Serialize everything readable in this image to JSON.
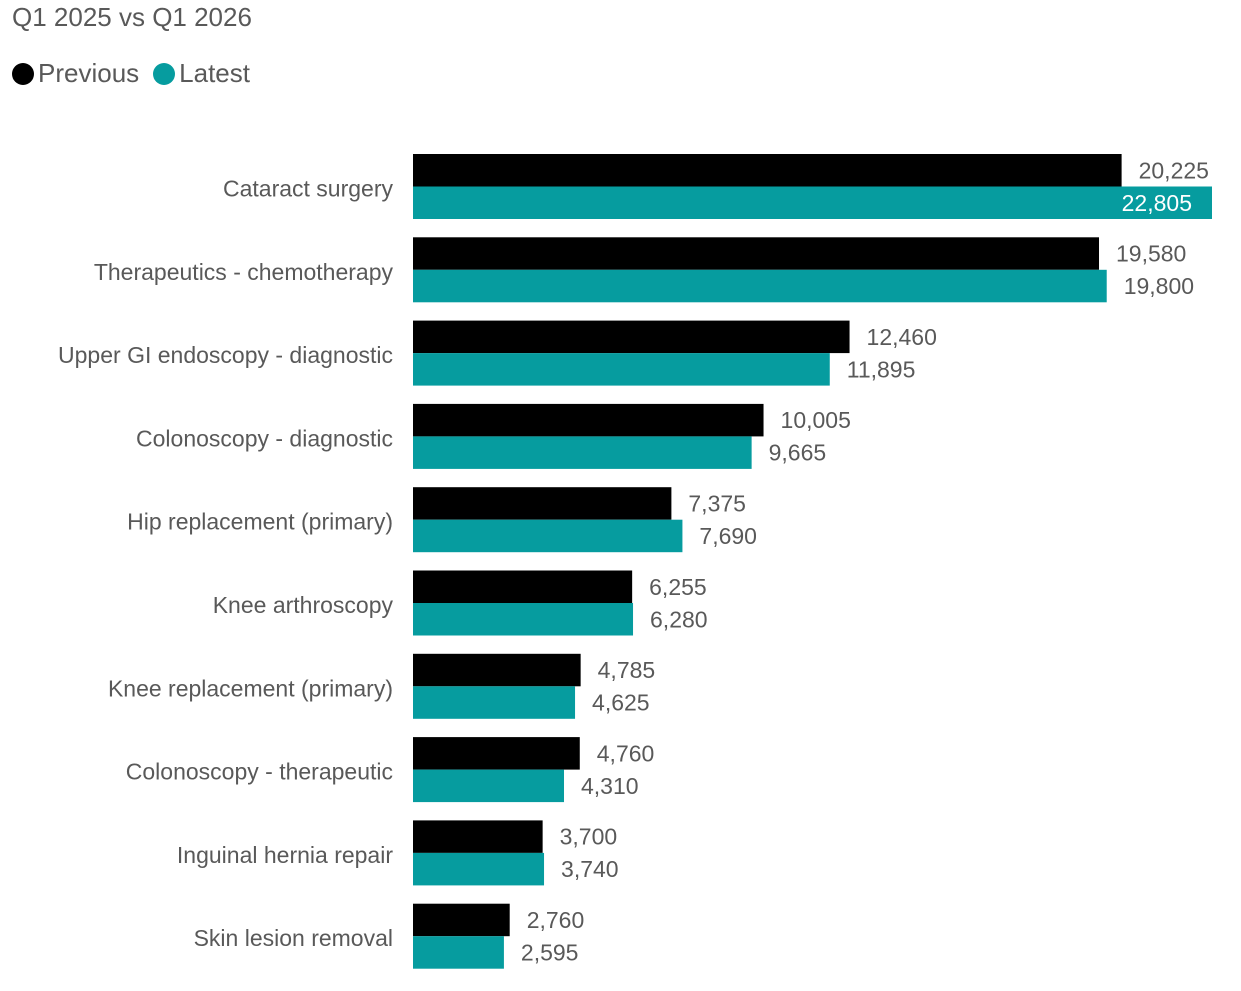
{
  "chart_data": {
    "type": "bar",
    "orientation": "horizontal",
    "subtitle": "Q1 2025 vs Q1 2026",
    "title": "",
    "xlabel": "",
    "ylabel": "",
    "legend_position": "top-left",
    "grid": false,
    "xlim": [
      0,
      22805
    ],
    "categories": [
      "Cataract surgery",
      "Therapeutics - chemotherapy",
      "Upper GI endoscopy - diagnostic",
      "Colonoscopy - diagnostic",
      "Hip replacement (primary)",
      "Knee arthroscopy",
      "Knee replacement (primary)",
      "Colonoscopy - therapeutic",
      "Inguinal hernia repair",
      "Skin lesion removal"
    ],
    "series": [
      {
        "name": "Previous",
        "color": "#000000",
        "values": [
          20225,
          19580,
          12460,
          10005,
          7375,
          6255,
          4785,
          4760,
          3700,
          2760
        ],
        "labels": [
          "20,225",
          "19,580",
          "12,460",
          "10,005",
          "7,375",
          "6,255",
          "4,785",
          "4,760",
          "3,700",
          "2,760"
        ]
      },
      {
        "name": "Latest",
        "color": "#069C9F",
        "values": [
          22805,
          19800,
          11895,
          9665,
          7690,
          6280,
          4625,
          4310,
          3740,
          2595
        ],
        "labels": [
          "22,805",
          "19,800",
          "11,895",
          "9,665",
          "7,690",
          "6,280",
          "4,625",
          "4,310",
          "3,740",
          "2,595"
        ]
      }
    ]
  }
}
